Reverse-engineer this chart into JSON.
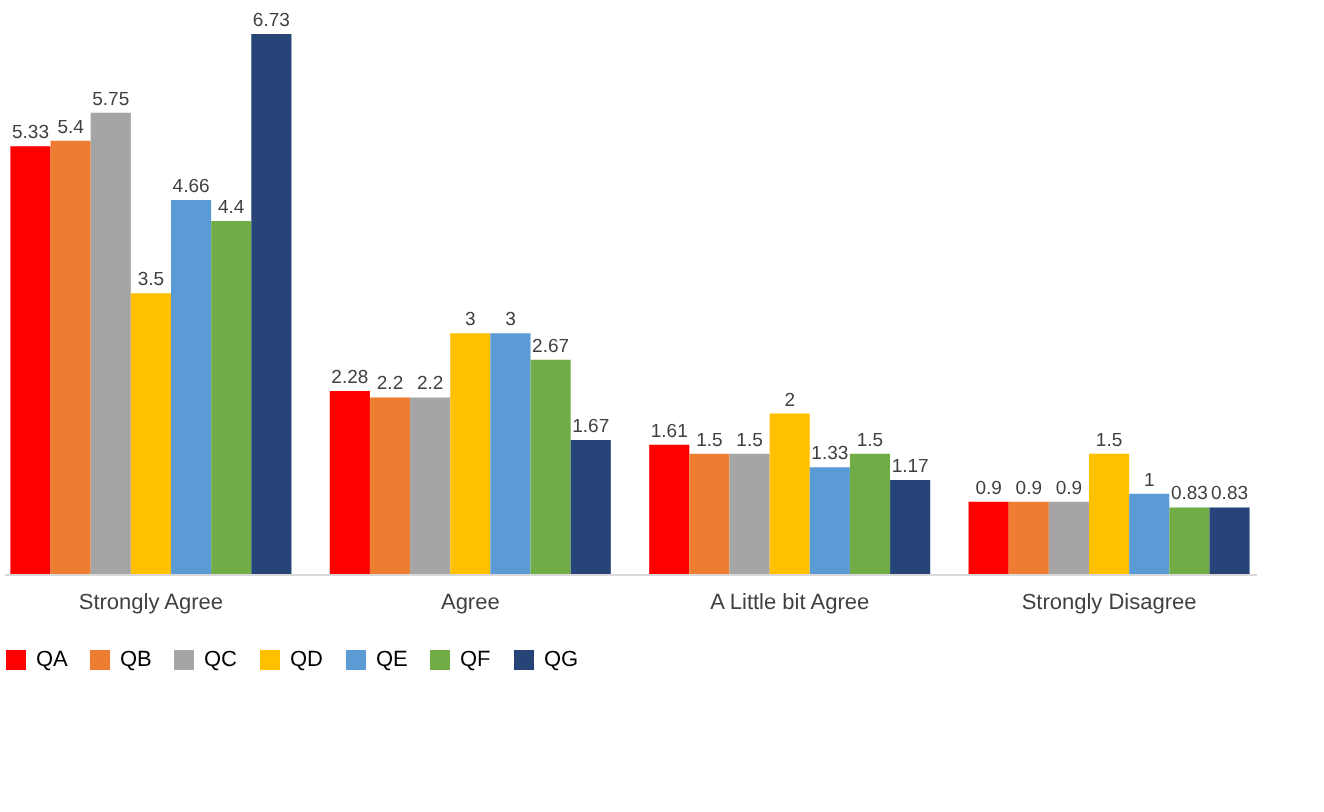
{
  "chart_data": {
    "type": "bar",
    "categories": [
      "Strongly Agree",
      "Agree",
      "A Little bit Agree",
      "Strongly Disagree"
    ],
    "series": [
      {
        "name": "QA",
        "color": "#ff0000",
        "values": [
          5.33,
          2.28,
          1.61,
          0.9
        ]
      },
      {
        "name": "QB",
        "color": "#ed7d31",
        "values": [
          5.4,
          2.2,
          1.5,
          0.9
        ]
      },
      {
        "name": "QC",
        "color": "#a5a5a5",
        "values": [
          5.75,
          2.2,
          1.5,
          0.9
        ]
      },
      {
        "name": "QD",
        "color": "#ffc000",
        "values": [
          3.5,
          3,
          2,
          1.5
        ]
      },
      {
        "name": "QE",
        "color": "#5b9bd5",
        "values": [
          4.66,
          3,
          1.33,
          1
        ]
      },
      {
        "name": "QF",
        "color": "#70ad47",
        "values": [
          4.4,
          2.67,
          1.5,
          0.83
        ]
      },
      {
        "name": "QG",
        "color": "#264478",
        "values": [
          6.73,
          1.67,
          1.17,
          0.83
        ]
      }
    ],
    "data_labels": true,
    "grid": false,
    "legend": "bottom",
    "tick_labels": "x"
  }
}
